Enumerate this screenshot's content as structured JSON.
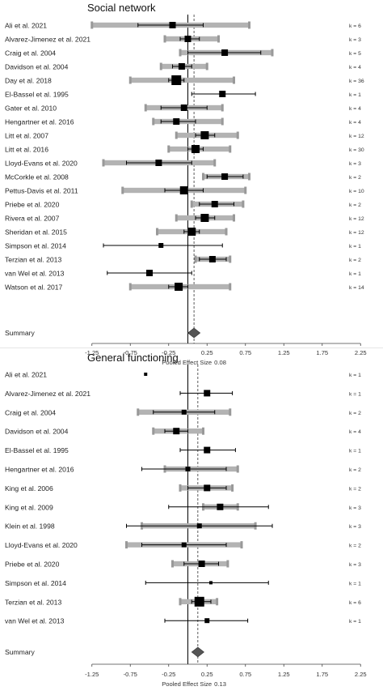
{
  "chart_data": [
    {
      "type": "forest",
      "title": "Social network",
      "xlabel_prefix": "Pooled Effect Size",
      "pooled": 0.08,
      "pooled_ci": [
        0.0,
        0.16
      ],
      "xlim": [
        -1.5,
        2.5
      ],
      "xticks": [
        -1.25,
        -0.75,
        -0.25,
        0.25,
        0.75,
        1.25,
        1.75,
        2.25
      ],
      "xtick_labels": [
        "-1.25",
        "-0.75",
        "-0.25",
        "0.25",
        "0.75",
        "1.25",
        "1.75",
        "2.25"
      ],
      "studies": [
        {
          "label": "Ali et al. 2021",
          "k": "k = 6",
          "est": -0.2,
          "ci": [
            -0.65,
            0.2
          ],
          "pi": [
            -1.25,
            0.8
          ],
          "size": 4
        },
        {
          "label": "Alvarez-Jimenez et al. 2021",
          "k": "k = 3",
          "est": 0.0,
          "ci": [
            -0.1,
            0.15
          ],
          "pi": [
            -0.3,
            0.4
          ],
          "size": 4
        },
        {
          "label": "Craig et al. 2004",
          "k": "k = 5",
          "est": 0.48,
          "ci": [
            0.0,
            0.95
          ],
          "pi": [
            -0.1,
            1.1
          ],
          "size": 4
        },
        {
          "label": "Davidson et al. 2004",
          "k": "k = 4",
          "est": -0.08,
          "ci": [
            -0.2,
            0.05
          ],
          "pi": [
            -0.35,
            0.25
          ],
          "size": 4
        },
        {
          "label": "Day et al. 2018",
          "k": "k = 36",
          "est": -0.15,
          "ci": [
            -0.25,
            -0.05
          ],
          "pi": [
            -0.75,
            0.6
          ],
          "size": 6
        },
        {
          "label": "El-Bassel et al. 1995",
          "k": "k = 1",
          "est": 0.45,
          "ci": [
            0.05,
            0.88
          ],
          "pi": null,
          "size": 4
        },
        {
          "label": "Gater et al. 2010",
          "k": "k = 4",
          "est": -0.05,
          "ci": [
            -0.35,
            0.25
          ],
          "pi": [
            -0.55,
            0.45
          ],
          "size": 4
        },
        {
          "label": "Hengartner et al. 2016",
          "k": "k = 4",
          "est": -0.15,
          "ci": [
            -0.35,
            0.1
          ],
          "pi": [
            -0.45,
            0.45
          ],
          "size": 4
        },
        {
          "label": "Litt et al. 2007",
          "k": "k = 12",
          "est": 0.22,
          "ci": [
            0.1,
            0.35
          ],
          "pi": [
            -0.15,
            0.65
          ],
          "size": 5
        },
        {
          "label": "Litt et al. 2016",
          "k": "k = 30",
          "est": 0.1,
          "ci": [
            0.0,
            0.2
          ],
          "pi": [
            -0.25,
            0.55
          ],
          "size": 5
        },
        {
          "label": "Lloyd-Evans et al. 2020",
          "k": "k = 3",
          "est": -0.38,
          "ci": [
            -0.8,
            0.05
          ],
          "pi": [
            -1.1,
            0.35
          ],
          "size": 4
        },
        {
          "label": "McCorkle et al. 2008",
          "k": "k = 2",
          "est": 0.48,
          "ci": [
            0.25,
            0.72
          ],
          "pi": [
            0.2,
            0.8
          ],
          "size": 4
        },
        {
          "label": "Pettus-Davis et al. 2011",
          "k": "k = 10",
          "est": -0.05,
          "ci": [
            -0.3,
            0.2
          ],
          "pi": [
            -0.85,
            0.75
          ],
          "size": 5
        },
        {
          "label": "Priebe et al. 2020",
          "k": "k = 2",
          "est": 0.35,
          "ci": [
            0.15,
            0.6
          ],
          "pi": [
            0.05,
            0.72
          ],
          "size": 4
        },
        {
          "label": "Rivera et al. 2007",
          "k": "k = 12",
          "est": 0.22,
          "ci": [
            0.1,
            0.35
          ],
          "pi": [
            -0.15,
            0.6
          ],
          "size": 5
        },
        {
          "label": "Sheridan et al. 2015",
          "k": "k = 12",
          "est": 0.05,
          "ci": [
            -0.05,
            0.15
          ],
          "pi": [
            -0.4,
            0.5
          ],
          "size": 5
        },
        {
          "label": "Simpson et al. 2014",
          "k": "k = 1",
          "est": -0.35,
          "ci": [
            -1.1,
            0.45
          ],
          "pi": null,
          "size": 3
        },
        {
          "label": "Terzian et al. 2013",
          "k": "k = 2",
          "est": 0.32,
          "ci": [
            0.15,
            0.5
          ],
          "pi": [
            0.1,
            0.55
          ],
          "size": 4
        },
        {
          "label": "van Wel et al. 2013",
          "k": "k = 1",
          "est": -0.5,
          "ci": [
            -1.05,
            0.05
          ],
          "pi": null,
          "size": 4
        },
        {
          "label": "Watson et al. 2017",
          "k": "k = 14",
          "est": -0.12,
          "ci": [
            -0.25,
            0.0
          ],
          "pi": [
            -0.75,
            0.55
          ],
          "size": 5
        }
      ],
      "summary_label": "Summary"
    },
    {
      "type": "forest",
      "title": "General functioning",
      "xlabel_prefix": "Pooled Effect Size",
      "pooled": 0.13,
      "pooled_ci": [
        0.05,
        0.21
      ],
      "xlim": [
        -1.5,
        2.5
      ],
      "xticks": [
        -1.25,
        -0.75,
        -0.25,
        0.25,
        0.75,
        1.25,
        1.75,
        2.25
      ],
      "xtick_labels": [
        "-1.25",
        "-0.75",
        "-0.25",
        "0.25",
        "0.75",
        "1.25",
        "1.75",
        "2.25"
      ],
      "studies": [
        {
          "label": "Ali et al. 2021",
          "k": "k = 1",
          "est": -0.55,
          "ci": null,
          "pi": null,
          "size": 2
        },
        {
          "label": "Alvarez-Jimenez et al. 2021",
          "k": "k = 1",
          "est": 0.25,
          "ci": [
            -0.1,
            0.58
          ],
          "pi": null,
          "size": 4
        },
        {
          "label": "Craig et al. 2004",
          "k": "k = 2",
          "est": -0.05,
          "ci": [
            -0.45,
            0.35
          ],
          "pi": [
            -0.65,
            0.55
          ],
          "size": 3
        },
        {
          "label": "Davidson et al. 2004",
          "k": "k = 4",
          "est": -0.15,
          "ci": [
            -0.3,
            0.0
          ],
          "pi": [
            -0.45,
            0.2
          ],
          "size": 4
        },
        {
          "label": "El-Bassel et al. 1995",
          "k": "k = 1",
          "est": 0.25,
          "ci": [
            -0.1,
            0.62
          ],
          "pi": null,
          "size": 4
        },
        {
          "label": "Hengartner et al. 2016",
          "k": "k = 2",
          "est": 0.0,
          "ci": [
            -0.6,
            0.5
          ],
          "pi": [
            -0.3,
            0.65
          ],
          "size": 3
        },
        {
          "label": "King et al. 2006",
          "k": "k = 2",
          "est": 0.25,
          "ci": [
            0.0,
            0.5
          ],
          "pi": [
            -0.1,
            0.58
          ],
          "size": 4
        },
        {
          "label": "King et al. 2009",
          "k": "k = 3",
          "est": 0.42,
          "ci": [
            -0.25,
            1.05
          ],
          "pi": [
            0.2,
            0.65
          ],
          "size": 4
        },
        {
          "label": "Klein et al. 1998",
          "k": "k = 3",
          "est": 0.15,
          "ci": [
            -0.8,
            1.1
          ],
          "pi": [
            -0.6,
            0.88
          ],
          "size": 3
        },
        {
          "label": "Lloyd-Evans et al. 2020",
          "k": "k = 2",
          "est": -0.05,
          "ci": [
            -0.6,
            0.5
          ],
          "pi": [
            -0.8,
            0.7
          ],
          "size": 3
        },
        {
          "label": "Priebe et al. 2020",
          "k": "k = 3",
          "est": 0.18,
          "ci": [
            -0.05,
            0.4
          ],
          "pi": [
            -0.2,
            0.52
          ],
          "size": 4
        },
        {
          "label": "Simpson et al. 2014",
          "k": "k = 1",
          "est": 0.3,
          "ci": [
            -0.55,
            1.05
          ],
          "pi": null,
          "size": 2
        },
        {
          "label": "Terzian et al. 2013",
          "k": "k = 6",
          "est": 0.15,
          "ci": [
            0.05,
            0.3
          ],
          "pi": [
            -0.1,
            0.38
          ],
          "size": 6
        },
        {
          "label": "van Wel et al. 2013",
          "k": "k = 1",
          "est": 0.25,
          "ci": [
            -0.3,
            0.78
          ],
          "pi": null,
          "size": 3
        }
      ],
      "summary_label": "Summary"
    }
  ]
}
